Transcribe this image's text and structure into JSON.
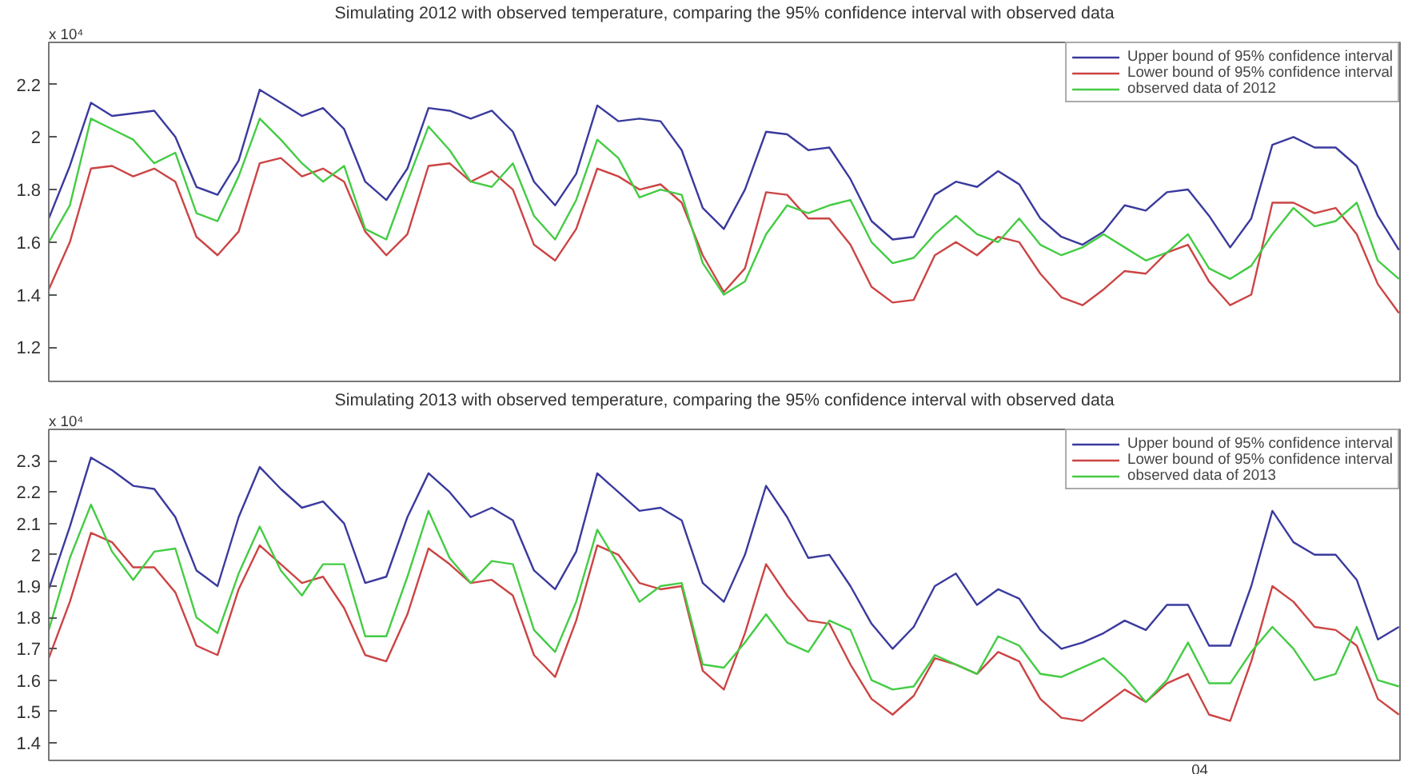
{
  "chart_data": [
    {
      "type": "line",
      "title": "Simulating 2012 with observed temperature, comparing the 95% confidence interval with observed data",
      "annotations": [
        "x 10⁴"
      ],
      "categories": [
        null,
        null,
        null,
        null,
        null,
        null,
        null,
        null,
        null,
        null,
        null,
        null,
        null,
        null,
        null,
        null,
        null,
        null,
        null,
        null,
        null,
        null,
        null,
        null,
        null,
        null,
        null,
        null,
        null,
        null,
        null,
        null,
        null,
        null,
        null,
        null,
        null,
        null,
        null,
        null,
        null,
        null,
        null,
        null,
        null,
        null,
        null,
        null,
        null,
        null,
        null,
        null,
        null,
        null,
        null,
        null,
        null,
        null,
        null,
        null,
        null,
        null,
        null,
        null,
        null
      ],
      "ylim": [
        1.07,
        2.36
      ],
      "yticks": [
        1.2,
        1.4,
        1.6,
        1.8,
        2,
        2.2
      ],
      "tick_labels": "y",
      "legend": "top right",
      "grid": false,
      "series": [
        {
          "name": "Upper bound of 95% confidence interval",
          "color": "#3a3a9e",
          "values": [
            1.69,
            1.89,
            2.13,
            2.08,
            2.09,
            2.1,
            2.0,
            1.81,
            1.78,
            1.91,
            2.18,
            2.13,
            2.08,
            2.11,
            2.03,
            1.83,
            1.76,
            1.88,
            2.11,
            2.1,
            2.07,
            2.1,
            2.02,
            1.83,
            1.74,
            1.86,
            2.12,
            2.06,
            2.07,
            2.06,
            1.95,
            1.73,
            1.65,
            1.8,
            2.02,
            2.01,
            1.95,
            1.96,
            1.84,
            1.68,
            1.61,
            1.62,
            1.78,
            1.83,
            1.81,
            1.87,
            1.82,
            1.69,
            1.62,
            1.59,
            1.64,
            1.74,
            1.72,
            1.79,
            1.8,
            1.7,
            1.58,
            1.69,
            1.97,
            2.0,
            1.96,
            1.96,
            1.89,
            1.7,
            1.57
          ]
        },
        {
          "name": "Lower bound of 95% confidence interval",
          "color": "#cc4444",
          "values": [
            1.42,
            1.6,
            1.88,
            1.89,
            1.85,
            1.88,
            1.83,
            1.62,
            1.55,
            1.64,
            1.9,
            1.92,
            1.85,
            1.88,
            1.83,
            1.64,
            1.55,
            1.63,
            1.89,
            1.9,
            1.83,
            1.87,
            1.8,
            1.59,
            1.53,
            1.65,
            1.88,
            1.85,
            1.8,
            1.82,
            1.75,
            1.55,
            1.41,
            1.5,
            1.79,
            1.78,
            1.69,
            1.69,
            1.59,
            1.43,
            1.37,
            1.38,
            1.55,
            1.6,
            1.55,
            1.62,
            1.6,
            1.48,
            1.39,
            1.36,
            1.42,
            1.49,
            1.48,
            1.56,
            1.59,
            1.45,
            1.36,
            1.4,
            1.75,
            1.75,
            1.71,
            1.73,
            1.63,
            1.44,
            1.33
          ]
        },
        {
          "name": "observed data of 2012",
          "color": "#44cc44",
          "values": [
            1.6,
            1.74,
            2.07,
            2.03,
            1.99,
            1.9,
            1.94,
            1.71,
            1.68,
            1.85,
            2.07,
            1.99,
            1.9,
            1.83,
            1.89,
            1.65,
            1.61,
            1.83,
            2.04,
            1.95,
            1.83,
            1.81,
            1.9,
            1.7,
            1.61,
            1.76,
            1.99,
            1.92,
            1.77,
            1.8,
            1.78,
            1.52,
            1.4,
            1.45,
            1.63,
            1.74,
            1.71,
            1.74,
            1.76,
            1.6,
            1.52,
            1.54,
            1.63,
            1.7,
            1.63,
            1.6,
            1.69,
            1.59,
            1.55,
            1.58,
            1.63,
            1.58,
            1.53,
            1.56,
            1.63,
            1.5,
            1.46,
            1.51,
            1.63,
            1.73,
            1.66,
            1.68,
            1.75,
            1.53,
            1.46
          ]
        }
      ]
    },
    {
      "type": "line",
      "title": "Simulating 2013 with observed temperature, comparing the 95% confidence interval with observed data",
      "annotations": [
        "x 10⁴",
        "04"
      ],
      "categories": [
        null,
        null,
        null,
        null,
        null,
        null,
        null,
        null,
        null,
        null,
        null,
        null,
        null,
        null,
        null,
        null,
        null,
        null,
        null,
        null,
        null,
        null,
        null,
        null,
        null,
        null,
        null,
        null,
        null,
        null,
        null,
        null,
        null,
        null,
        null,
        null,
        null,
        null,
        null,
        null,
        null,
        null,
        null,
        null,
        null,
        null,
        null,
        null,
        null,
        null,
        null,
        null,
        null,
        null,
        null,
        null,
        null,
        null,
        null,
        null,
        null,
        null,
        null,
        null,
        null
      ],
      "ylim": [
        1.344,
        2.4
      ],
      "yticks": [
        1.4,
        1.5,
        1.6,
        1.7,
        1.8,
        1.9,
        2,
        2.1,
        2.2,
        2.3
      ],
      "tick_labels": "y",
      "legend": "top right",
      "grid": false,
      "series": [
        {
          "name": "Upper bound of 95% confidence interval",
          "color": "#3a3a9e",
          "values": [
            1.89,
            2.09,
            2.31,
            2.27,
            2.22,
            2.21,
            2.12,
            1.95,
            1.9,
            2.12,
            2.28,
            2.21,
            2.15,
            2.17,
            2.1,
            1.91,
            1.93,
            2.12,
            2.26,
            2.2,
            2.12,
            2.15,
            2.11,
            1.95,
            1.89,
            2.01,
            2.26,
            2.2,
            2.14,
            2.15,
            2.11,
            1.91,
            1.85,
            2.0,
            2.22,
            2.12,
            1.99,
            2.0,
            1.9,
            1.78,
            1.7,
            1.77,
            1.9,
            1.94,
            1.84,
            1.89,
            1.86,
            1.76,
            1.7,
            1.72,
            1.75,
            1.79,
            1.76,
            1.84,
            1.84,
            1.71,
            1.71,
            1.9,
            2.14,
            2.04,
            2.0,
            2.0,
            1.92,
            1.73,
            1.77
          ]
        },
        {
          "name": "Lower bound of 95% confidence interval",
          "color": "#cc4444",
          "values": [
            1.67,
            1.85,
            2.07,
            2.04,
            1.96,
            1.96,
            1.88,
            1.71,
            1.68,
            1.89,
            2.03,
            1.97,
            1.91,
            1.93,
            1.83,
            1.68,
            1.66,
            1.81,
            2.02,
            1.97,
            1.91,
            1.92,
            1.87,
            1.68,
            1.61,
            1.79,
            2.03,
            2.0,
            1.91,
            1.89,
            1.9,
            1.63,
            1.57,
            1.75,
            1.97,
            1.87,
            1.79,
            1.78,
            1.65,
            1.54,
            1.49,
            1.55,
            1.67,
            1.65,
            1.62,
            1.69,
            1.66,
            1.54,
            1.48,
            1.47,
            1.52,
            1.57,
            1.53,
            1.59,
            1.62,
            1.49,
            1.47,
            1.66,
            1.9,
            1.85,
            1.77,
            1.76,
            1.71,
            1.54,
            1.49
          ]
        },
        {
          "name": "observed data of 2013",
          "color": "#44cc44",
          "values": [
            1.76,
            1.99,
            2.16,
            2.01,
            1.92,
            2.01,
            2.02,
            1.8,
            1.75,
            1.94,
            2.09,
            1.95,
            1.87,
            1.97,
            1.97,
            1.74,
            1.74,
            1.93,
            2.14,
            1.99,
            1.91,
            1.98,
            1.97,
            1.76,
            1.69,
            1.85,
            2.08,
            1.97,
            1.85,
            1.9,
            1.91,
            1.65,
            1.64,
            1.72,
            1.81,
            1.72,
            1.69,
            1.79,
            1.76,
            1.6,
            1.57,
            1.58,
            1.68,
            1.65,
            1.62,
            1.74,
            1.71,
            1.62,
            1.61,
            1.64,
            1.67,
            1.61,
            1.53,
            1.6,
            1.72,
            1.59,
            1.59,
            1.69,
            1.77,
            1.7,
            1.6,
            1.62,
            1.77,
            1.6,
            1.58
          ]
        }
      ]
    }
  ]
}
